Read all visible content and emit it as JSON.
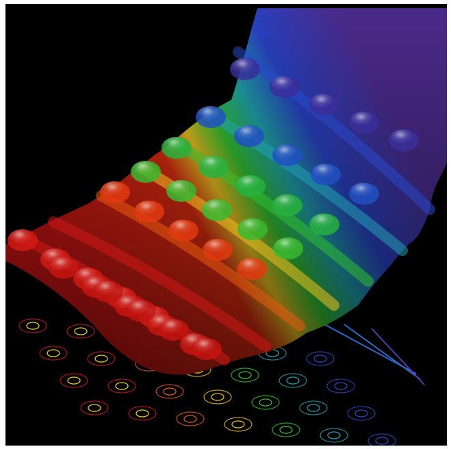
{
  "image": {
    "kind": "3D surface plot with projected contour lines on a black background",
    "text": "",
    "colors": {
      "background": "#000000",
      "border": "#ffffff",
      "spectrum": [
        "#d01818",
        "#e85a10",
        "#f0c020",
        "#30c030",
        "#20a0b0",
        "#2848c8",
        "#5a2aa0"
      ]
    }
  }
}
